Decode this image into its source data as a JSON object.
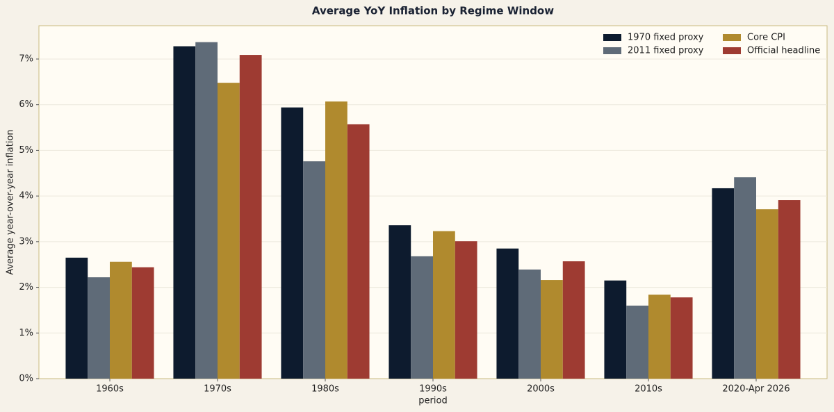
{
  "chart_data": {
    "type": "bar",
    "title": "Average YoY Inflation by Regime Window",
    "x_label": "period",
    "y_label": "Average year-over-year inflation",
    "categories": [
      "1960s",
      "1970s",
      "1980s",
      "1990s",
      "2000s",
      "2010s",
      "2020-Apr 2026"
    ],
    "series": [
      {
        "name": "1970 fixed proxy",
        "color": "#0d1b2e",
        "values": [
          2.65,
          7.28,
          5.94,
          3.36,
          2.85,
          2.15,
          4.17
        ]
      },
      {
        "name": "2011 fixed proxy",
        "color": "#5f6b78",
        "values": [
          2.22,
          7.37,
          4.76,
          2.68,
          2.39,
          1.6,
          4.41
        ]
      },
      {
        "name": "Core CPI",
        "color": "#b08a2e",
        "values": [
          2.56,
          6.48,
          6.07,
          3.23,
          2.16,
          1.84,
          3.71
        ]
      },
      {
        "name": "Official headline",
        "color": "#9e3b32",
        "values": [
          2.44,
          7.09,
          5.57,
          3.01,
          2.57,
          1.78,
          3.91
        ]
      }
    ],
    "ylim": [
      0,
      7.73
    ],
    "yticks": [
      {
        "value": 0,
        "label": "0%"
      },
      {
        "value": 1,
        "label": "1%"
      },
      {
        "value": 2,
        "label": "2%"
      },
      {
        "value": 3,
        "label": "3%"
      },
      {
        "value": 4,
        "label": "4%"
      },
      {
        "value": 5,
        "label": "5%"
      },
      {
        "value": 6,
        "label": "6%"
      },
      {
        "value": 7,
        "label": "7%"
      }
    ],
    "grid": true,
    "legend_position": "upper right"
  }
}
